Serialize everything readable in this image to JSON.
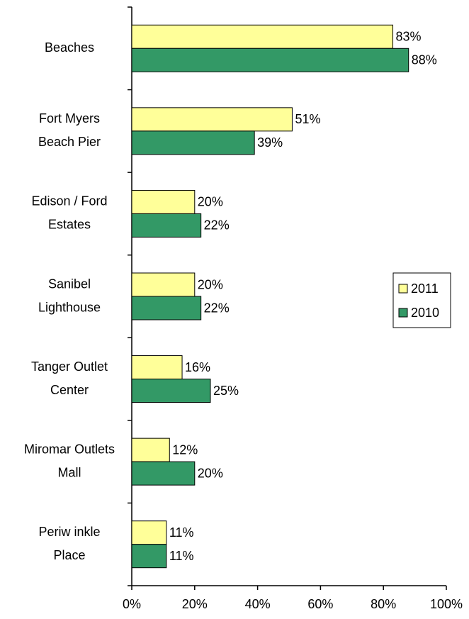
{
  "chart_data": {
    "type": "bar",
    "orientation": "horizontal",
    "categories": [
      [
        "Beaches"
      ],
      [
        "Fort Myers",
        "Beach Pier"
      ],
      [
        "Edison / Ford",
        "Estates"
      ],
      [
        "Sanibel",
        "Lighthouse"
      ],
      [
        "Tanger Outlet",
        "Center"
      ],
      [
        "Miromar Outlets",
        "Mall"
      ],
      [
        "Periw inkle",
        "Place"
      ]
    ],
    "series": [
      {
        "name": "2011",
        "color": "#ffff99",
        "values": [
          83,
          51,
          20,
          20,
          16,
          12,
          11
        ],
        "value_labels": [
          "83%",
          "51%",
          "20%",
          "20%",
          "16%",
          "12%",
          "11%"
        ]
      },
      {
        "name": "2010",
        "color": "#339966",
        "values": [
          88,
          39,
          22,
          22,
          25,
          20,
          11
        ],
        "value_labels": [
          "88%",
          "39%",
          "22%",
          "22%",
          "25%",
          "20%",
          "11%"
        ]
      }
    ],
    "xlim": [
      0,
      100
    ],
    "xticks": [
      {
        "value": 0,
        "label": "0%"
      },
      {
        "value": 20,
        "label": "20%"
      },
      {
        "value": 40,
        "label": "40%"
      },
      {
        "value": 60,
        "label": "60%"
      },
      {
        "value": 80,
        "label": "80%"
      },
      {
        "value": 100,
        "label": "100%"
      }
    ],
    "grid": false,
    "legend": "right"
  }
}
